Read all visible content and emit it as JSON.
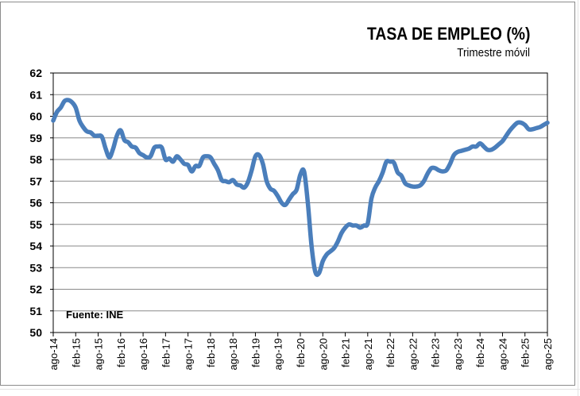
{
  "chart_data": {
    "type": "line",
    "title": "TASA DE EMPLEO (%)",
    "subtitle": "Trimestre móvil",
    "annotation": "Fuente: INE",
    "xlabel": "",
    "ylabel": "",
    "ylim": [
      50,
      62
    ],
    "yticks": [
      50,
      51,
      52,
      53,
      54,
      55,
      56,
      57,
      58,
      59,
      60,
      61,
      62
    ],
    "grid": true,
    "line_color": "#4a7ebb",
    "xtick_labels": [
      "ago-14",
      "feb-15",
      "ago-15",
      "feb-16",
      "ago-16",
      "feb-17",
      "ago-17",
      "feb-18",
      "ago-18",
      "feb-19",
      "ago-19",
      "feb-20",
      "ago-20",
      "feb-21",
      "ago-21",
      "feb-22",
      "ago-22",
      "feb-23",
      "ago-23",
      "feb-24",
      "ago-24",
      "feb-25",
      "ago-25"
    ],
    "x": [
      "ago-14",
      "sep-14",
      "oct-14",
      "nov-14",
      "dic-14",
      "ene-15",
      "feb-15",
      "mar-15",
      "abr-15",
      "may-15",
      "jun-15",
      "jul-15",
      "ago-15",
      "sep-15",
      "oct-15",
      "nov-15",
      "dic-15",
      "ene-16",
      "feb-16",
      "mar-16",
      "abr-16",
      "may-16",
      "jun-16",
      "jul-16",
      "ago-16",
      "sep-16",
      "oct-16",
      "nov-16",
      "dic-16",
      "ene-17",
      "feb-17",
      "mar-17",
      "abr-17",
      "may-17",
      "jun-17",
      "jul-17",
      "ago-17",
      "sep-17",
      "oct-17",
      "nov-17",
      "dic-17",
      "ene-18",
      "feb-18",
      "mar-18",
      "abr-18",
      "may-18",
      "jun-18",
      "jul-18",
      "ago-18",
      "sep-18",
      "oct-18",
      "nov-18",
      "dic-18",
      "ene-19",
      "feb-19",
      "mar-19",
      "abr-19",
      "may-19",
      "jun-19",
      "jul-19",
      "ago-19",
      "sep-19",
      "oct-19",
      "nov-19",
      "dic-19",
      "ene-20",
      "feb-20",
      "mar-20",
      "abr-20",
      "may-20",
      "jun-20",
      "jul-20",
      "ago-20",
      "sep-20",
      "oct-20",
      "nov-20",
      "dic-20",
      "ene-21",
      "feb-21",
      "mar-21",
      "abr-21",
      "may-21",
      "jun-21",
      "jul-21",
      "ago-21",
      "sep-21",
      "oct-21",
      "nov-21",
      "dic-21",
      "ene-22",
      "feb-22",
      "mar-22",
      "abr-22",
      "may-22",
      "jun-22",
      "jul-22",
      "ago-22",
      "sep-22",
      "oct-22",
      "nov-22",
      "dic-22",
      "ene-23",
      "feb-23",
      "mar-23",
      "abr-23",
      "may-23",
      "jun-23",
      "jul-23",
      "ago-23",
      "sep-23",
      "oct-23",
      "nov-23",
      "dic-23",
      "ene-24",
      "feb-24",
      "mar-24",
      "abr-24",
      "may-24",
      "jun-24",
      "jul-24",
      "ago-24",
      "sep-24",
      "oct-24",
      "nov-24",
      "dic-24",
      "ene-25",
      "feb-25",
      "mar-25",
      "abr-25",
      "may-25",
      "jun-25",
      "jul-25",
      "ago-25"
    ],
    "values": [
      59.8,
      60.2,
      60.4,
      60.7,
      60.75,
      60.65,
      60.4,
      59.8,
      59.5,
      59.3,
      59.25,
      59.1,
      59.1,
      59.05,
      58.5,
      58.1,
      58.5,
      59.1,
      59.35,
      58.9,
      58.8,
      58.6,
      58.55,
      58.3,
      58.2,
      58.1,
      58.15,
      58.55,
      58.6,
      58.55,
      58.0,
      58.05,
      57.9,
      58.15,
      58.0,
      57.8,
      57.75,
      57.45,
      57.7,
      57.7,
      58.1,
      58.15,
      58.1,
      57.8,
      57.5,
      57.05,
      57.0,
      56.95,
      57.05,
      56.85,
      56.8,
      56.7,
      56.95,
      57.5,
      58.15,
      58.2,
      57.8,
      57.0,
      56.65,
      56.55,
      56.3,
      56.0,
      55.9,
      56.15,
      56.4,
      56.6,
      57.3,
      57.45,
      56.0,
      54.0,
      52.8,
      52.75,
      53.3,
      53.6,
      53.75,
      53.9,
      54.2,
      54.6,
      54.85,
      55.0,
      54.95,
      54.95,
      54.85,
      54.95,
      55.05,
      56.2,
      56.7,
      57.0,
      57.4,
      57.9,
      57.9,
      57.85,
      57.4,
      57.25,
      56.9,
      56.8,
      56.75,
      56.75,
      56.8,
      57.0,
      57.35,
      57.6,
      57.6,
      57.5,
      57.45,
      57.5,
      57.8,
      58.2,
      58.35,
      58.4,
      58.45,
      58.5,
      58.6,
      58.6,
      58.75,
      58.6,
      58.45,
      58.45,
      58.55,
      58.7,
      58.85,
      59.1,
      59.35,
      59.55,
      59.7,
      59.7,
      59.6,
      59.4,
      59.4,
      59.45,
      59.5,
      59.6,
      59.7
    ]
  }
}
